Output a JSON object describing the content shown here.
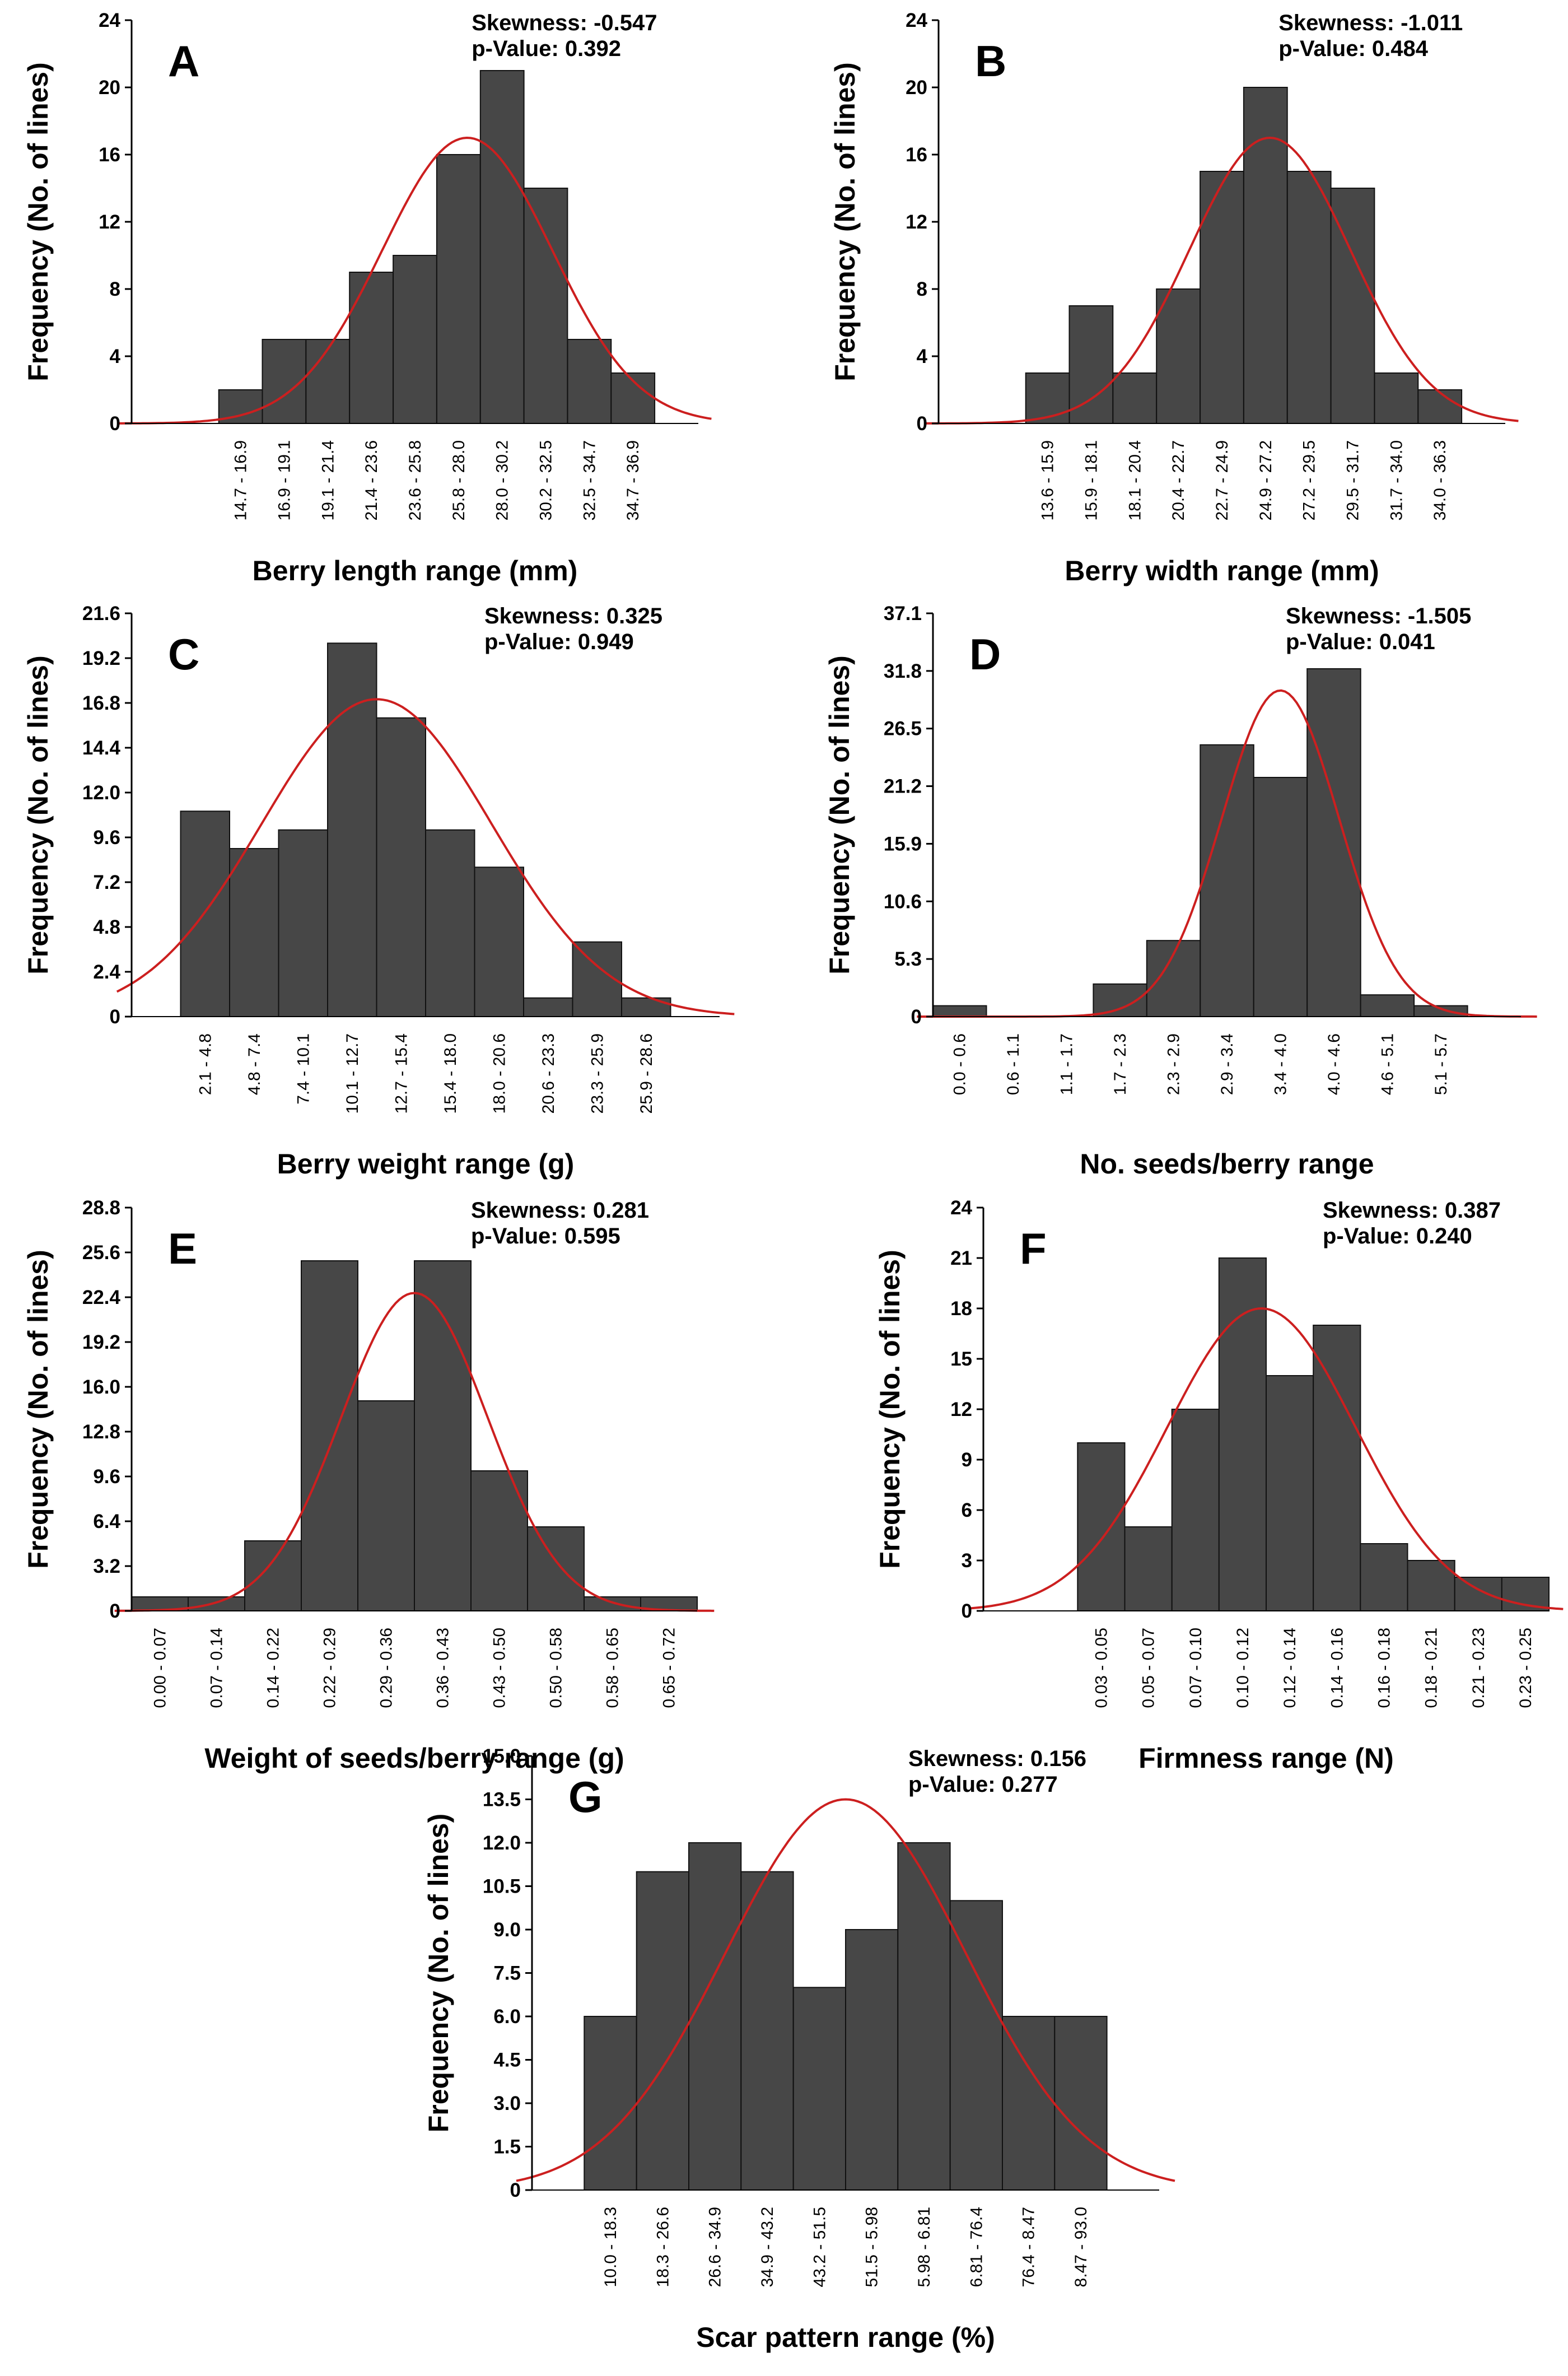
{
  "colors": {
    "bar": "#474747",
    "bar_edge": "#111111",
    "curve": "#cc1f1f",
    "axis": "#000000"
  },
  "chart_data": [
    {
      "type": "bar",
      "panel": "A",
      "stats": [
        "Skewness: -0.547",
        "p-Value: 0.392"
      ],
      "ylabel": "Frequency (No. of lines)",
      "xlabel": "Berry length range (mm)",
      "yticks": [
        "0",
        "4",
        "8",
        "12",
        "16",
        "20",
        "24"
      ],
      "ylim": [
        0,
        24
      ],
      "n_slots": 13,
      "first_bar_slot": 2,
      "categories": [
        "14.7 - 16.9",
        "16.9 - 19.1",
        "19.1 - 21.4",
        "21.4 - 23.6",
        "23.6 - 25.8",
        "25.8 - 28.0",
        "28.0 - 30.2",
        "30.2 - 32.5",
        "32.5 - 34.7",
        "34.7 - 36.9"
      ],
      "values": [
        2,
        5,
        5,
        9,
        10,
        16,
        21,
        14,
        5,
        3
      ],
      "fit": {
        "type": "normal",
        "peak": 17,
        "mean_slot": 7.7,
        "sd_slots": 1.95
      }
    },
    {
      "type": "bar",
      "panel": "B",
      "stats": [
        "Skewness: -1.011",
        "p-Value: 0.484"
      ],
      "ylabel": "Frequency (No. of lines)",
      "xlabel": "Berry width range (mm)",
      "yticks": [
        "0",
        "4",
        "8",
        "12",
        "16",
        "20",
        "24"
      ],
      "ylim": [
        0,
        24
      ],
      "n_slots": 13,
      "first_bar_slot": 2,
      "categories": [
        "13.6 - 15.9",
        "15.9 - 18.1",
        "18.1 - 20.4",
        "20.4 - 22.7",
        "22.7 - 24.9",
        "24.9 - 27.2",
        "27.2 - 29.5",
        "29.5 - 31.7",
        "31.7 - 34.0",
        "34.0 - 36.3"
      ],
      "values": [
        3,
        7,
        3,
        8,
        15,
        20,
        15,
        14,
        3,
        2
      ],
      "fit": {
        "type": "normal",
        "peak": 17,
        "mean_slot": 7.6,
        "sd_slots": 1.85
      }
    },
    {
      "type": "bar",
      "panel": "C",
      "stats": [
        "Skewness: 0.325",
        "p-Value: 0.949"
      ],
      "ylabel": "Frequency (No. of lines)",
      "xlabel": "Berry weight range (g)",
      "yticks": [
        "0",
        "2.4",
        "4.8",
        "7.2",
        "9.6",
        "12.0",
        "14.4",
        "16.8",
        "19.2",
        "21.6"
      ],
      "ylim": [
        0,
        21.6
      ],
      "n_slots": 12,
      "first_bar_slot": 1,
      "categories": [
        "2.1 - 4.8",
        "4.8 - 7.4",
        "7.4 - 10.1",
        "10.1 - 12.7",
        "12.7 - 15.4",
        "15.4 - 18.0",
        "18.0 - 20.6",
        "20.6 - 23.3",
        "23.3 - 25.9",
        "25.9 - 28.6"
      ],
      "values": [
        11,
        9,
        10,
        20,
        16,
        10,
        8,
        1,
        4,
        1
      ],
      "fit": {
        "type": "normal",
        "peak": 17,
        "mean_slot": 5.0,
        "sd_slots": 2.35
      }
    },
    {
      "type": "bar",
      "panel": "D",
      "stats": [
        "Skewness: -1.505",
        "p-Value: 0.041"
      ],
      "ylabel": "Frequency (No. of lines)",
      "xlabel": "No. seeds/berry range",
      "yticks": [
        "0",
        "5.3",
        "10.6",
        "15.9",
        "21.2",
        "26.5",
        "31.8",
        "37.1"
      ],
      "ylim": [
        0,
        37.1
      ],
      "n_slots": 11,
      "first_bar_slot": 0,
      "categories": [
        "0.0 - 0.6",
        "0.6 - 1.1",
        "1.1 - 1.7",
        "1.7 - 2.3",
        "2.3 - 2.9",
        "2.9 - 3.4",
        "3.4 - 4.0",
        "4.0 - 4.6",
        "4.6 - 5.1",
        "5.1 - 5.7"
      ],
      "values": [
        1,
        0,
        0,
        3,
        7,
        25,
        22,
        32,
        2,
        1
      ],
      "fit": {
        "type": "normal",
        "peak": 30,
        "mean_slot": 6.5,
        "sd_slots": 1.1
      }
    },
    {
      "type": "bar",
      "panel": "E",
      "stats": [
        "Skewness: 0.281",
        "p-Value: 0.595"
      ],
      "ylabel": "Frequency (No. of lines)",
      "xlabel": "Weight of  seeds/berry range (g)",
      "yticks": [
        "0",
        "3.2",
        "6.4",
        "9.6",
        "12.8",
        "16.0",
        "19.2",
        "22.4",
        "25.6",
        "28.8"
      ],
      "ylim": [
        0,
        28.8
      ],
      "n_slots": 10,
      "first_bar_slot": 0,
      "categories": [
        "0.00 - 0.07",
        "0.07 - 0.14",
        "0.14 - 0.22",
        "0.22 - 0.29",
        "0.29 - 0.36",
        "0.36 - 0.43",
        "0.43 - 0.50",
        "0.50 - 0.58",
        "0.58 - 0.65",
        "0.65 - 0.72"
      ],
      "values": [
        1,
        1,
        5,
        25,
        15,
        25,
        10,
        6,
        1,
        1
      ],
      "fit": {
        "type": "normal",
        "peak": 22.7,
        "mean_slot": 5.0,
        "sd_slots": 1.3
      }
    },
    {
      "type": "bar",
      "panel": "F",
      "stats": [
        "Skewness: 0.387",
        "p-Value: 0.240"
      ],
      "ylabel": "Frequency (No. of lines)",
      "xlabel": "Firmness range (N)",
      "yticks": [
        "0",
        "3",
        "6",
        "9",
        "12",
        "15",
        "18",
        "21",
        "24"
      ],
      "ylim": [
        0,
        24
      ],
      "n_slots": 12,
      "first_bar_slot": 2,
      "categories": [
        "0.03 - 0.05",
        "0.05 - 0.07",
        "0.07 - 0.10",
        "0.10 - 0.12",
        "0.12 - 0.14",
        "0.14 - 0.16",
        "0.16 - 0.18",
        "0.18 - 0.21",
        "0.21 - 0.23",
        "0.23 - 0.25"
      ],
      "values": [
        10,
        5,
        12,
        21,
        14,
        17,
        4,
        3,
        2,
        2
      ],
      "fit": {
        "type": "normal",
        "peak": 18,
        "mean_slot": 5.9,
        "sd_slots": 2.0
      }
    },
    {
      "type": "bar",
      "panel": "G",
      "stats": [
        "Skewness: 0.156",
        "p-Value: 0.277"
      ],
      "ylabel": "Frequency (No. of lines)",
      "xlabel": "Scar pattern range (%)",
      "yticks": [
        "0",
        "1.5",
        "3.0",
        "4.5",
        "6.0",
        "7.5",
        "9.0",
        "10.5",
        "12.0",
        "13.5",
        "15.0"
      ],
      "ylim": [
        0,
        15
      ],
      "n_slots": 12,
      "first_bar_slot": 1,
      "categories": [
        "10.0 - 18.3",
        "18.3 - 26.6",
        "26.6 - 34.9",
        "34.9 - 43.2",
        "43.2 - 51.5",
        "51.5 - 5.98",
        "5.98 - 6.81",
        "6.81 - 76.4",
        "76.4 - 8.47",
        "8.47 - 93.0"
      ],
      "values": [
        6,
        11,
        12,
        11,
        7,
        9,
        12,
        10,
        6,
        6
      ],
      "fit": {
        "type": "normal",
        "peak": 13.5,
        "mean_slot": 6.0,
        "sd_slots": 2.3
      }
    }
  ]
}
